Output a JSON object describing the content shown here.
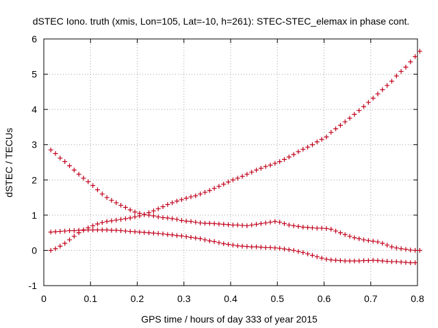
{
  "chart_data": {
    "type": "scatter",
    "title": "dSTEC Iono. truth (xmis, Lon=105, Lat=-10, h=261): STEC-STEC_elemax in phase cont.",
    "xlabel": "GPS time / hours of day 333 of year 2015",
    "ylabel": "dSTEC  / TECUs",
    "xlim": [
      0,
      0.8
    ],
    "ylim": [
      -1,
      6
    ],
    "xticks": [
      0,
      0.1,
      0.2,
      0.3,
      0.4,
      0.5,
      0.6,
      0.7,
      0.8
    ],
    "xtick_labels": [
      "0",
      "0.1",
      "0.2",
      "0.3",
      "0.4",
      "0.5",
      "0.6",
      "0.7",
      "0.8"
    ],
    "yticks": [
      -1,
      0,
      1,
      2,
      3,
      4,
      5,
      6
    ],
    "ytick_labels": [
      "-1",
      "0",
      "1",
      "2",
      "3",
      "4",
      "5",
      "6"
    ],
    "grid": true,
    "marker": "plus",
    "color": "#c0001a",
    "series": [
      {
        "x": [
          0.015,
          0.025,
          0.035,
          0.045,
          0.055,
          0.065,
          0.075,
          0.085,
          0.095,
          0.105,
          0.115,
          0.125,
          0.135,
          0.145,
          0.155,
          0.165,
          0.175,
          0.185,
          0.195,
          0.205,
          0.215,
          0.225,
          0.235,
          0.245,
          0.255,
          0.265,
          0.275,
          0.285,
          0.295,
          0.305,
          0.315,
          0.325,
          0.335,
          0.345,
          0.355,
          0.365,
          0.375,
          0.385,
          0.395,
          0.405,
          0.415,
          0.425,
          0.435,
          0.445,
          0.455,
          0.465,
          0.475,
          0.485,
          0.495,
          0.505,
          0.515,
          0.525,
          0.535,
          0.545,
          0.555,
          0.565,
          0.575,
          0.585,
          0.595,
          0.605,
          0.615,
          0.625,
          0.635,
          0.645,
          0.655,
          0.665,
          0.675,
          0.685,
          0.695,
          0.705,
          0.715,
          0.725,
          0.735,
          0.745,
          0.755,
          0.765,
          0.775,
          0.785,
          0.795,
          0.805
        ],
        "y": [
          0.0,
          0.05,
          0.12,
          0.2,
          0.3,
          0.4,
          0.5,
          0.58,
          0.64,
          0.7,
          0.75,
          0.79,
          0.82,
          0.84,
          0.86,
          0.88,
          0.9,
          0.92,
          0.95,
          0.98,
          1.02,
          1.07,
          1.12,
          1.18,
          1.24,
          1.3,
          1.35,
          1.4,
          1.44,
          1.48,
          1.52,
          1.55,
          1.6,
          1.65,
          1.7,
          1.76,
          1.82,
          1.88,
          1.94,
          2.0,
          2.05,
          2.1,
          2.16,
          2.22,
          2.28,
          2.33,
          2.38,
          2.42,
          2.47,
          2.52,
          2.58,
          2.65,
          2.72,
          2.8,
          2.87,
          2.93,
          3.0,
          3.08,
          3.15,
          3.22,
          3.35,
          3.45,
          3.55,
          3.65,
          3.75,
          3.86,
          3.97,
          4.08,
          4.2,
          4.32,
          4.44,
          4.56,
          4.68,
          4.8,
          4.95,
          5.08,
          5.2,
          5.35,
          5.5,
          5.65
        ]
      },
      {
        "x": [
          0.015,
          0.025,
          0.035,
          0.045,
          0.055,
          0.065,
          0.075,
          0.085,
          0.095,
          0.105,
          0.115,
          0.125,
          0.135,
          0.145,
          0.155,
          0.165,
          0.175,
          0.185,
          0.195,
          0.205,
          0.215,
          0.225,
          0.235,
          0.245,
          0.255,
          0.265,
          0.275,
          0.285,
          0.295,
          0.305,
          0.315,
          0.325,
          0.335,
          0.345,
          0.355,
          0.365,
          0.375,
          0.385,
          0.395,
          0.405,
          0.415,
          0.425,
          0.435,
          0.445,
          0.455,
          0.465,
          0.475,
          0.485,
          0.495,
          0.505,
          0.515,
          0.525,
          0.535,
          0.545,
          0.555,
          0.565,
          0.575,
          0.585,
          0.595,
          0.605,
          0.615,
          0.625,
          0.635,
          0.645,
          0.655,
          0.665,
          0.675,
          0.685,
          0.695,
          0.705,
          0.715,
          0.725,
          0.735,
          0.745,
          0.755,
          0.765,
          0.775,
          0.785,
          0.795,
          0.805
        ],
        "y": [
          2.85,
          2.75,
          2.62,
          2.52,
          2.4,
          2.28,
          2.16,
          2.05,
          1.95,
          1.84,
          1.72,
          1.6,
          1.5,
          1.42,
          1.35,
          1.28,
          1.22,
          1.15,
          1.09,
          1.05,
          1.02,
          1.0,
          0.98,
          0.95,
          0.93,
          0.92,
          0.9,
          0.88,
          0.85,
          0.83,
          0.82,
          0.8,
          0.78,
          0.77,
          0.77,
          0.76,
          0.75,
          0.74,
          0.73,
          0.72,
          0.72,
          0.71,
          0.7,
          0.72,
          0.74,
          0.76,
          0.78,
          0.8,
          0.82,
          0.8,
          0.76,
          0.72,
          0.7,
          0.68,
          0.66,
          0.65,
          0.64,
          0.63,
          0.63,
          0.62,
          0.6,
          0.55,
          0.5,
          0.45,
          0.4,
          0.36,
          0.33,
          0.3,
          0.28,
          0.26,
          0.24,
          0.2,
          0.15,
          0.1,
          0.07,
          0.05,
          0.03,
          0.01,
          0.0,
          0.0
        ]
      },
      {
        "x": [
          0.015,
          0.025,
          0.035,
          0.045,
          0.055,
          0.065,
          0.075,
          0.085,
          0.095,
          0.105,
          0.115,
          0.125,
          0.135,
          0.145,
          0.155,
          0.165,
          0.175,
          0.185,
          0.195,
          0.205,
          0.215,
          0.225,
          0.235,
          0.245,
          0.255,
          0.265,
          0.275,
          0.285,
          0.295,
          0.305,
          0.315,
          0.325,
          0.335,
          0.345,
          0.355,
          0.365,
          0.375,
          0.385,
          0.395,
          0.405,
          0.415,
          0.425,
          0.435,
          0.445,
          0.455,
          0.465,
          0.475,
          0.485,
          0.495,
          0.505,
          0.515,
          0.525,
          0.535,
          0.545,
          0.555,
          0.565,
          0.575,
          0.585,
          0.595,
          0.605,
          0.615,
          0.625,
          0.635,
          0.645,
          0.655,
          0.665,
          0.675,
          0.685,
          0.695,
          0.705,
          0.715,
          0.725,
          0.735,
          0.745,
          0.755,
          0.765,
          0.775,
          0.785,
          0.795
        ],
        "y": [
          0.52,
          0.53,
          0.54,
          0.55,
          0.56,
          0.56,
          0.57,
          0.57,
          0.58,
          0.58,
          0.58,
          0.58,
          0.58,
          0.57,
          0.57,
          0.56,
          0.55,
          0.54,
          0.53,
          0.52,
          0.51,
          0.5,
          0.49,
          0.48,
          0.47,
          0.45,
          0.44,
          0.42,
          0.41,
          0.39,
          0.37,
          0.35,
          0.33,
          0.3,
          0.27,
          0.25,
          0.22,
          0.19,
          0.17,
          0.15,
          0.13,
          0.12,
          0.11,
          0.1,
          0.1,
          0.09,
          0.08,
          0.08,
          0.07,
          0.06,
          0.04,
          0.02,
          0.0,
          -0.03,
          -0.06,
          -0.1,
          -0.14,
          -0.18,
          -0.22,
          -0.25,
          -0.27,
          -0.28,
          -0.29,
          -0.3,
          -0.3,
          -0.3,
          -0.3,
          -0.29,
          -0.29,
          -0.28,
          -0.29,
          -0.3,
          -0.31,
          -0.32,
          -0.32,
          -0.33,
          -0.34,
          -0.35,
          -0.35
        ]
      }
    ]
  }
}
